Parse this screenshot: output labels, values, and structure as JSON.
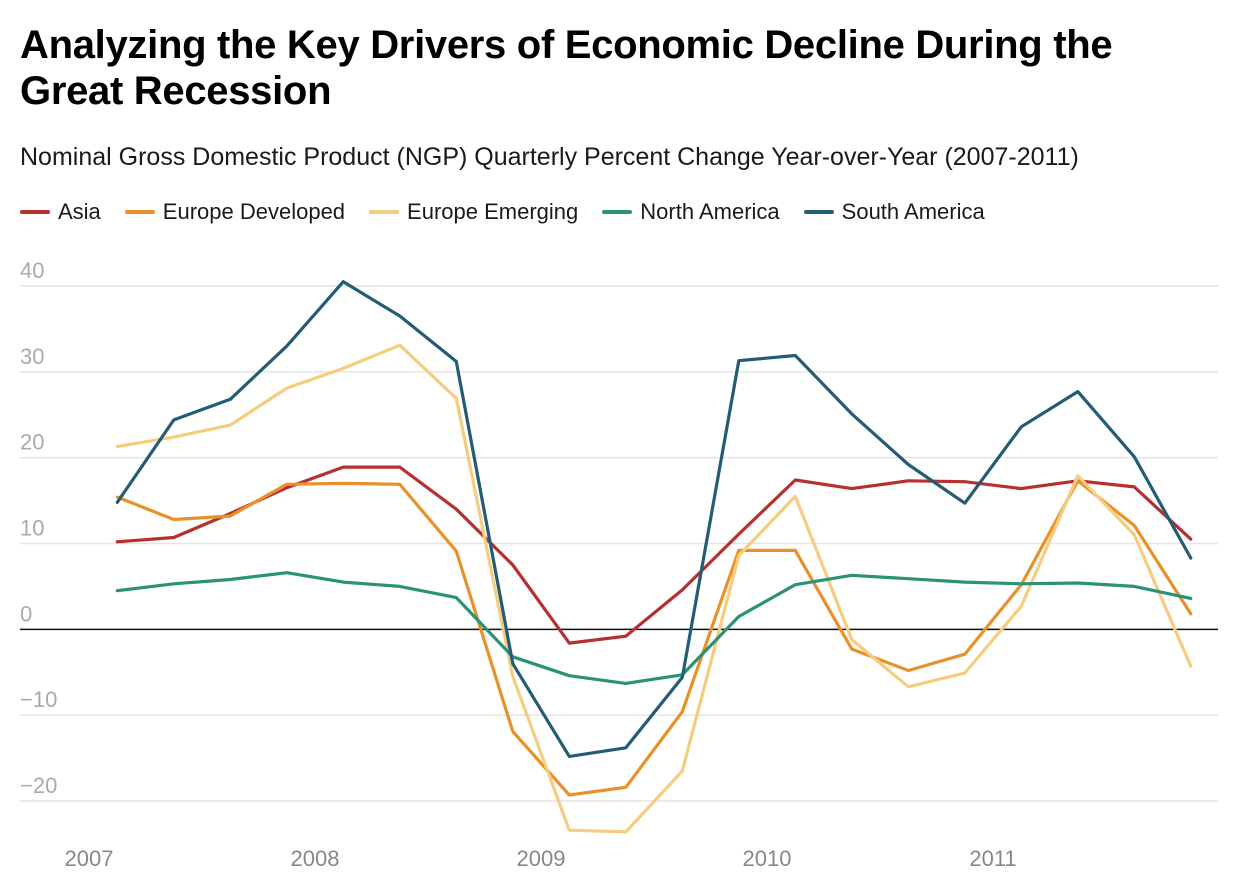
{
  "header": {
    "title": "Analyzing the Key Drivers of Economic Decline During the Great Recession",
    "subtitle": "Nominal Gross Domestic Product (NGP) Quarterly Percent Change Year-over-Year (2007-2011)"
  },
  "chart_data": {
    "type": "line",
    "title": "Analyzing the Key Drivers of Economic Decline During the Great Recession",
    "subtitle": "Nominal Gross Domestic Product (NGP) Quarterly Percent Change Year-over-Year (2007-2011)",
    "xlabel": "",
    "ylabel": "",
    "legend_position": "top-left",
    "grid": true,
    "ylim": [
      -25,
      40
    ],
    "yticks": [
      40,
      30,
      20,
      10,
      0,
      -10,
      -20
    ],
    "ytick_labels": [
      "40",
      "30",
      "20",
      "10",
      "0",
      "−10",
      "−20"
    ],
    "xlim": [
      "2007",
      "2012"
    ],
    "xtick_labels": [
      "2007",
      "2008",
      "2009",
      "2010",
      "2011"
    ],
    "x": [
      "2007 Q1",
      "2007 Q2",
      "2007 Q3",
      "2007 Q4",
      "2008 Q1",
      "2008 Q2",
      "2008 Q3",
      "2008 Q4",
      "2009 Q1",
      "2009 Q2",
      "2009 Q3",
      "2009 Q4",
      "2010 Q1",
      "2010 Q2",
      "2010 Q3",
      "2010 Q4",
      "2011 Q1",
      "2011 Q2",
      "2011 Q3",
      "2011 Q4"
    ],
    "series": [
      {
        "name": "Asia",
        "color": "#b5302e",
        "values": [
          10.2,
          10.7,
          13.5,
          16.5,
          18.9,
          18.9,
          14.0,
          7.5,
          -1.6,
          -0.8,
          4.6,
          11.1,
          17.4,
          16.4,
          17.3,
          17.2,
          16.4,
          17.3,
          16.6,
          10.5
        ]
      },
      {
        "name": "Europe Developed",
        "color": "#e8912a",
        "values": [
          15.4,
          12.8,
          13.2,
          16.9,
          17.0,
          16.9,
          9.1,
          -11.9,
          -19.3,
          -18.4,
          -9.6,
          9.2,
          9.2,
          -2.3,
          -4.8,
          -2.9,
          5.2,
          17.3,
          12.1,
          1.8
        ]
      },
      {
        "name": "Europe Emerging",
        "color": "#f6cc7e",
        "values": [
          21.3,
          22.4,
          23.8,
          28.1,
          30.4,
          33.1,
          26.9,
          -5.5,
          -23.4,
          -23.6,
          -16.5,
          8.6,
          15.5,
          -1.2,
          -6.7,
          -5.1,
          2.7,
          17.9,
          11.0,
          -4.3
        ]
      },
      {
        "name": "North America",
        "color": "#2b9277",
        "values": [
          4.5,
          5.3,
          5.8,
          6.6,
          5.5,
          5.0,
          3.7,
          -3.2,
          -5.4,
          -6.3,
          -5.3,
          1.5,
          5.2,
          6.3,
          5.9,
          5.5,
          5.3,
          5.4,
          5.0,
          3.6
        ]
      },
      {
        "name": "South America",
        "color": "#235c74",
        "values": [
          14.8,
          24.4,
          26.8,
          33.0,
          40.5,
          36.5,
          31.2,
          -4.0,
          -14.8,
          -13.8,
          -5.6,
          31.3,
          31.9,
          25.1,
          19.2,
          14.7,
          23.6,
          27.7,
          20.1,
          8.3
        ]
      }
    ]
  }
}
